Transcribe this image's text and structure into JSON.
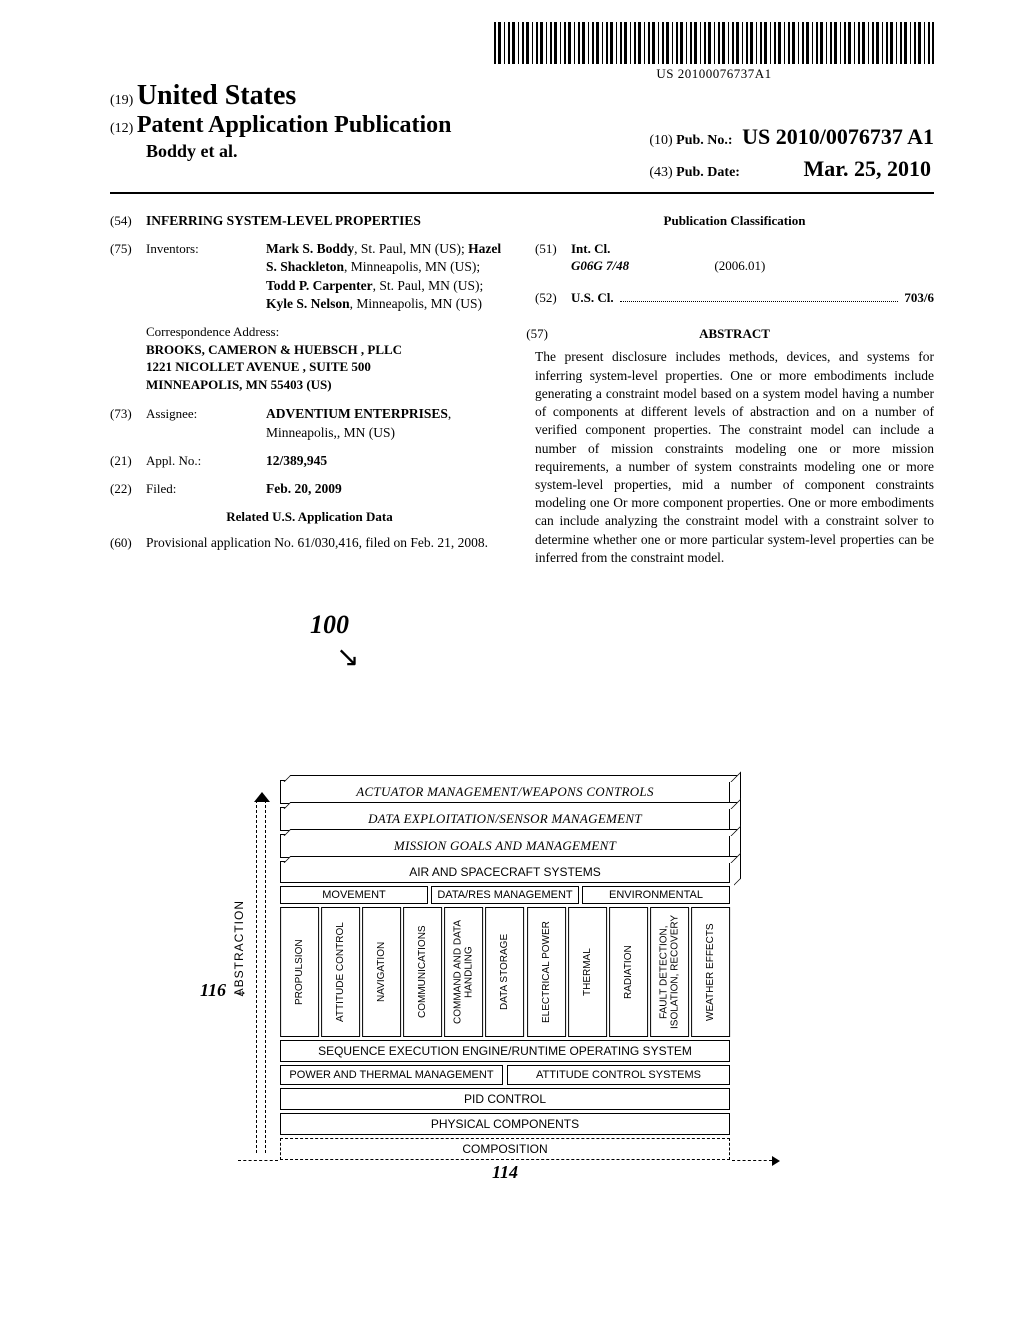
{
  "barcode": {
    "text": "US 20100076737A1"
  },
  "header": {
    "line19_num": "(19)",
    "line19_text": "United States",
    "line12_num": "(12)",
    "line12_text": "Patent Application Publication",
    "authors": "Boddy et al.",
    "pubno_num": "(10)",
    "pubno_label": "Pub. No.:",
    "pubno_value": "US 2010/0076737 A1",
    "pubdate_num": "(43)",
    "pubdate_label": "Pub. Date:",
    "pubdate_value": "Mar. 25, 2010"
  },
  "left": {
    "title_num": "(54)",
    "title": "INFERRING SYSTEM-LEVEL PROPERTIES",
    "inv_num": "(75)",
    "inv_label": "Inventors:",
    "inventors_html": "Mark S. Boddy|, St. Paul, MN (US); |Hazel S. Shackleton|, Minneapolis, MN (US); |Todd P. Carpenter|, St. Paul, MN (US); |Kyle S. Nelson|, Minneapolis, MN (US)",
    "corr_label": "Correspondence Address:",
    "corr_line1": "BROOKS, CAMERON & HUEBSCH , PLLC",
    "corr_line2": "1221 NICOLLET AVENUE , SUITE 500",
    "corr_line3": "MINNEAPOLIS, MN 55403 (US)",
    "assignee_num": "(73)",
    "assignee_label": "Assignee:",
    "assignee_name": "ADVENTIUM ENTERPRISES",
    "assignee_loc": ", Minneapolis,, MN (US)",
    "applno_num": "(21)",
    "applno_label": "Appl. No.:",
    "applno_val": "12/389,945",
    "filed_num": "(22)",
    "filed_label": "Filed:",
    "filed_val": "Feb. 20, 2009",
    "related_hdr": "Related U.S. Application Data",
    "prov_num": "(60)",
    "prov_text": "Provisional application No. 61/030,416, filed on Feb. 21, 2008."
  },
  "right": {
    "pubclass_hdr": "Publication Classification",
    "intcl_num": "(51)",
    "intcl_label": "Int. Cl.",
    "intcl_code": "G06G  7/48",
    "intcl_year": "(2006.01)",
    "uscl_num": "(52)",
    "uscl_label": "U.S. Cl.",
    "uscl_val": "703/6",
    "abs_num": "(57)",
    "abs_hdr": "ABSTRACT",
    "abstract": "The present disclosure includes methods, devices, and systems for inferring system-level properties. One or more embodiments include generating a constraint model based on a system model having a number of components at different levels of abstraction and on a number of verified component properties. The constraint model can include a number of mission constraints modeling one or more mission requirements, a number of system constraints modeling one or more system-level properties, mid a number of component constraints modeling one Or more component properties. One or more embodiments can include analyzing the constraint model with a constraint solver to determine whether one or more particular system-level properties can be inferred from the constraint model."
  },
  "figure": {
    "ref100": "100",
    "ref116": "116",
    "ref114": "114",
    "abstraction_label": "ABSTRACTION",
    "layers_top": [
      "ACTUATOR MANAGEMENT/WEAPONS CONTROLS",
      "DATA EXPLOITATION/SENSOR MANAGEMENT",
      "MISSION GOALS AND MANAGEMENT"
    ],
    "air_spacecraft": "AIR AND SPACECRAFT SYSTEMS",
    "sys_groups": [
      "MOVEMENT",
      "DATA/RES MANAGEMENT",
      "ENVIRONMENTAL"
    ],
    "vcols": [
      "PROPULSION",
      "ATTITUDE CONTROL",
      "NAVIGATION",
      "COMMUNICATIONS",
      "COMMAND AND DATA HANDLING",
      "DATA STORAGE",
      "ELECTRICAL POWER",
      "THERMAL",
      "RADIATION",
      "FAULT DETECTION, ISOLATION, RECOVERY",
      "WEATHER EFFECTS"
    ],
    "seq_engine": "SEQUENCE EXECUTION ENGINE/RUNTIME OPERATING SYSTEM",
    "half_row": [
      "POWER AND THERMAL MANAGEMENT",
      "ATTITUDE CONTROL SYSTEMS"
    ],
    "pid": "PID CONTROL",
    "physical": "PHYSICAL COMPONENTS",
    "composition": "COMPOSITION"
  }
}
